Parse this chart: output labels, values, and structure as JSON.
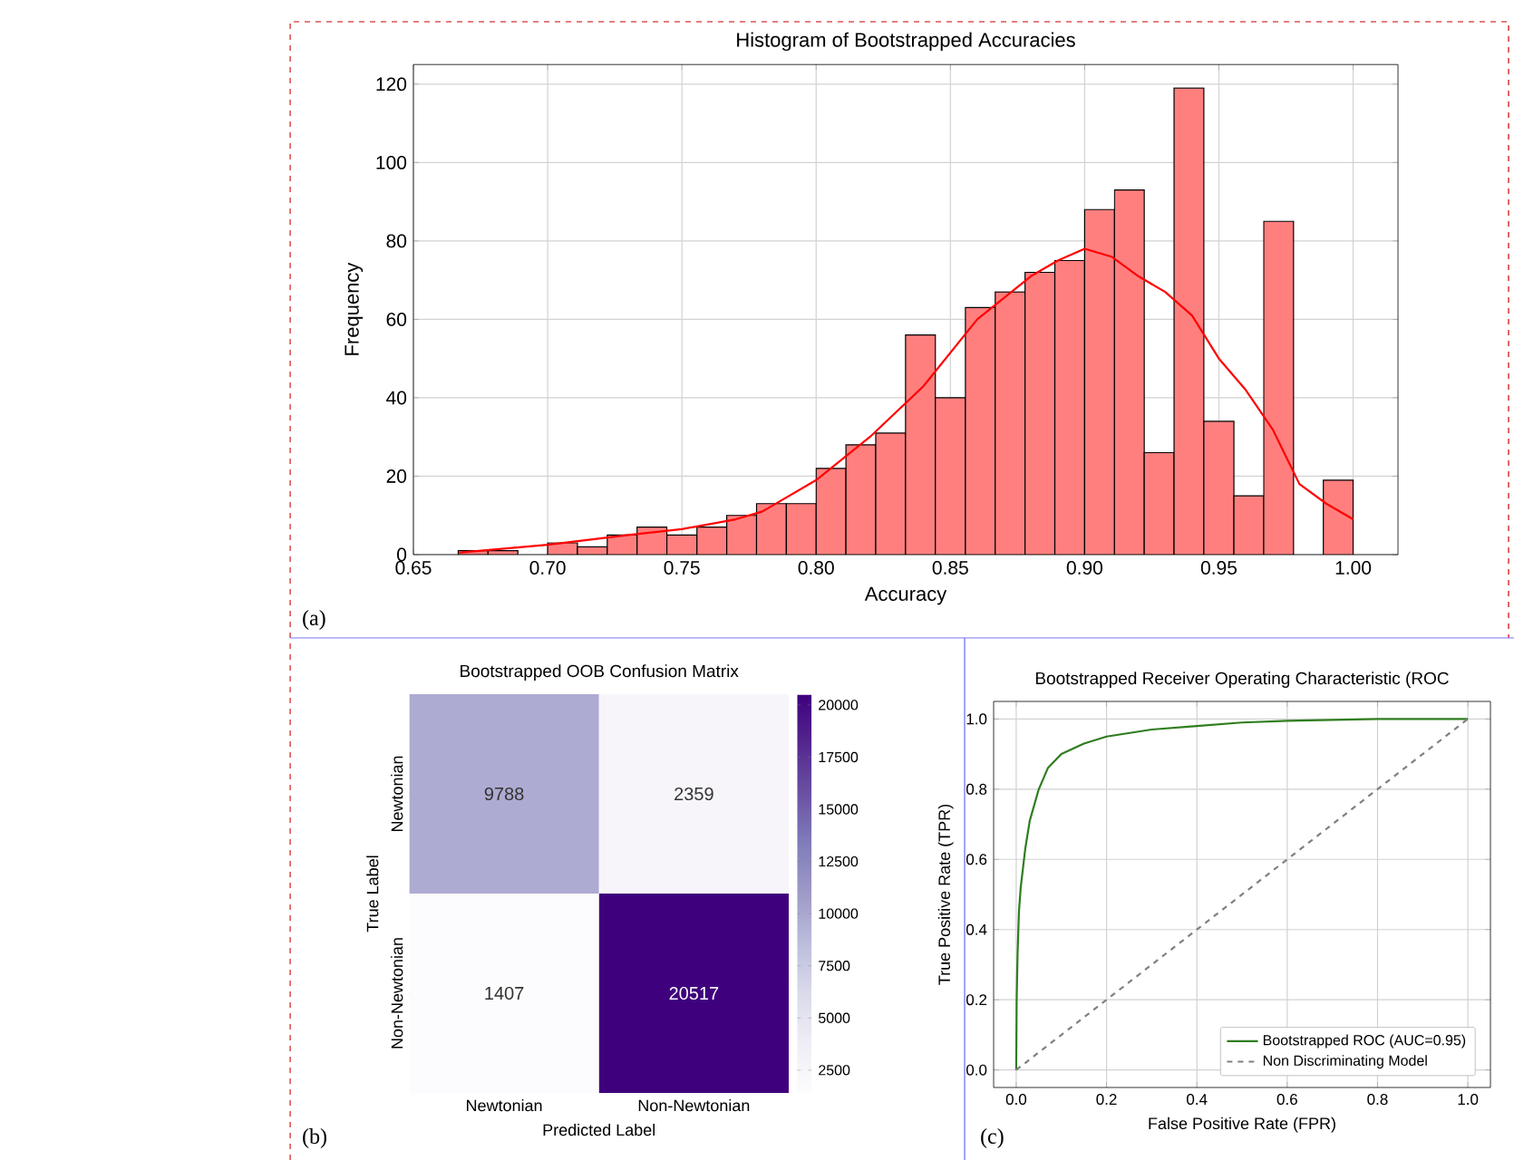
{
  "chart_data": [
    {
      "type": "histogram",
      "title": "Histogram of Bootstrapped Accuracies",
      "xlabel": "Accuracy",
      "ylabel": "Frequency",
      "xlim": [
        0.65,
        1.0167
      ],
      "xticks": [
        0.65,
        {
          "value": 0.7,
          "label": "0.70"
        },
        0.75,
        {
          "value": 0.8,
          "label": "0.80"
        },
        0.85,
        {
          "value": 0.9,
          "label": "0.90"
        },
        0.95,
        {
          "value": 1.0,
          "label": "1.00"
        }
      ],
      "ylim": [
        0,
        125
      ],
      "yticks": [
        0,
        20,
        40,
        60,
        80,
        100,
        120
      ],
      "grid": true,
      "annotations": [
        "(a)"
      ],
      "series": [
        {
          "type": "histogram",
          "color": "#ff7f7f",
          "bins": [
            0.6667,
            0.6778,
            0.6889,
            0.7,
            0.7111,
            0.7222,
            0.7333,
            0.7444,
            0.7556,
            0.7667,
            0.7778,
            0.7889,
            0.8,
            0.8111,
            0.8222,
            0.8333,
            0.8444,
            0.8556,
            0.8667,
            0.8778,
            0.8889,
            0.9,
            0.9111,
            0.9222,
            0.9333,
            0.9444,
            0.9556,
            0.9667,
            0.9778,
            0.9889,
            1.0
          ],
          "values": [
            1,
            1,
            0,
            3,
            2,
            5,
            7,
            5,
            7,
            10,
            13,
            13,
            22,
            28,
            31,
            56,
            40,
            63,
            67,
            72,
            75,
            88,
            93,
            26,
            119,
            34,
            15,
            85,
            0,
            19
          ]
        },
        {
          "type": "line",
          "color": "#ff0000",
          "x": [
            0.667,
            0.7,
            0.73,
            0.75,
            0.77,
            0.78,
            0.8,
            0.82,
            0.84,
            0.86,
            0.88,
            0.89,
            0.9,
            0.91,
            0.92,
            0.93,
            0.94,
            0.95,
            0.96,
            0.97,
            0.98,
            0.99,
            1.0
          ],
          "values": [
            0.5,
            2.5,
            5,
            6.5,
            9,
            11,
            19,
            30,
            43,
            60,
            71,
            75,
            78,
            76,
            71,
            67,
            61,
            50,
            42,
            32,
            18,
            13,
            9
          ]
        }
      ]
    },
    {
      "type": "heatmap",
      "title": "Bootstrapped OOB Confusion Matrix",
      "xlabel": "Predicted Label",
      "ylabel": "True Label",
      "categories": [
        "Newtonian",
        "Non-Newtonian"
      ],
      "y_categories": [
        "Newtonian",
        "Non-Newtonian"
      ],
      "cells": [
        [
          9788,
          2359
        ],
        [
          1407,
          20517
        ]
      ],
      "clim": [
        1407,
        20517
      ],
      "cticks": [
        2500,
        5000,
        7500,
        10000,
        12500,
        15000,
        17500,
        20000
      ],
      "data_labels": true,
      "annotations": [
        "(b)"
      ]
    },
    {
      "type": "line",
      "title": "Bootstrapped Receiver Operating Characteristic (ROC",
      "xlabel": "False Positive Rate (FPR)",
      "ylabel": "True Positive Rate (TPR)",
      "xlim": [
        -0.05,
        1.05
      ],
      "ylim": [
        -0.05,
        1.05
      ],
      "xticks": [
        {
          "value": 0,
          "label": "0.0"
        },
        0.2,
        0.4,
        0.6,
        0.8,
        {
          "value": 1,
          "label": "1.0"
        }
      ],
      "yticks": [
        {
          "value": 0,
          "label": "0.0"
        },
        0.2,
        0.4,
        0.6,
        0.8,
        {
          "value": 1,
          "label": "1.0"
        }
      ],
      "grid": true,
      "legend": "bottom right",
      "annotations": [
        "(c)"
      ],
      "series": [
        {
          "name": "Bootstrapped ROC (AUC=0.95)",
          "color": "#2e7d1e",
          "x": [
            0,
            0.001,
            0.003,
            0.006,
            0.01,
            0.02,
            0.03,
            0.05,
            0.07,
            0.1,
            0.15,
            0.2,
            0.3,
            0.4,
            0.5,
            0.6,
            0.8,
            1.0
          ],
          "values": [
            0,
            0.2,
            0.33,
            0.45,
            0.52,
            0.63,
            0.71,
            0.8,
            0.86,
            0.9,
            0.93,
            0.95,
            0.97,
            0.98,
            0.99,
            0.995,
            1.0,
            1.0
          ]
        },
        {
          "name": "Non Discriminating Model",
          "color": "#808080",
          "line_style": "dashed",
          "x": [
            0,
            1
          ],
          "values": [
            0,
            1
          ]
        }
      ]
    }
  ]
}
